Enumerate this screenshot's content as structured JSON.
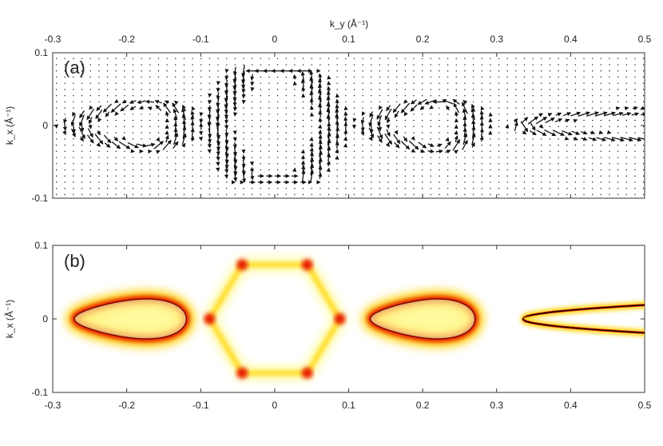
{
  "chart_data": [
    {
      "type": "quiver",
      "panel_label": "(a)",
      "xlabel": "k_y (Å⁻¹)",
      "ylabel": "k_x (Å⁻¹)",
      "xlim": [
        -0.3,
        0.5
      ],
      "ylim": [
        -0.1,
        0.1
      ],
      "x_ticks": [
        "-0.3",
        "-0.2",
        "-0.1",
        "0",
        "0.1",
        "0.2",
        "0.3",
        "0.4",
        "0.5"
      ],
      "y_ticks": [
        "0.1",
        "0",
        "-0.1"
      ],
      "x_tick_values": [
        -0.3,
        -0.2,
        -0.1,
        0,
        0.1,
        0.2,
        0.3,
        0.4,
        0.5
      ],
      "y_tick_values": [
        0.1,
        0,
        -0.1
      ],
      "x_axis_position": "top",
      "grid": false,
      "arrow_color": "#111111",
      "features": [
        {
          "shape": "lens",
          "center": [
            -0.195,
            0.0
          ],
          "half_width": 0.075,
          "half_height": 0.028
        },
        {
          "shape": "hexagon",
          "center": [
            0.0,
            0.0
          ],
          "radius_x": 0.085,
          "radius_y": 0.085
        },
        {
          "shape": "lens",
          "center": [
            0.2,
            0.0
          ],
          "half_width": 0.07,
          "half_height": 0.03
        },
        {
          "shape": "open-lens",
          "vertex": [
            0.335,
            0.0
          ],
          "opening": 0.02
        }
      ]
    },
    {
      "type": "heatmap",
      "panel_label": "(b)",
      "ylabel": "k_x (Å⁻¹)",
      "xlim": [
        -0.3,
        0.5
      ],
      "ylim": [
        -0.1,
        0.1
      ],
      "x_ticks": [
        "-0.3",
        "-0.2",
        "-0.1",
        "0",
        "0.1",
        "0.2",
        "0.3",
        "0.4",
        "0.5"
      ],
      "y_ticks": [
        "0.1",
        "0",
        "-0.1"
      ],
      "x_tick_values": [
        -0.3,
        -0.2,
        -0.1,
        0,
        0.1,
        0.2,
        0.3,
        0.4,
        0.5
      ],
      "y_tick_values": [
        0.1,
        0,
        -0.1
      ],
      "colormap": [
        "#ffffff",
        "#fffb9e",
        "#ffd200",
        "#e61e00",
        "#8a0000",
        "#000000"
      ],
      "features": [
        {
          "shape": "lens",
          "center": [
            -0.195,
            0.0
          ],
          "half_width": 0.075,
          "half_height": 0.025
        },
        {
          "shape": "hexagon",
          "center": [
            0.0,
            0.0
          ],
          "radius_x": 0.088,
          "radius_y": 0.085
        },
        {
          "shape": "lens",
          "center": [
            0.2,
            0.0
          ],
          "half_width": 0.07,
          "half_height": 0.025
        },
        {
          "shape": "open-lens",
          "vertex": [
            0.335,
            0.0
          ],
          "opening": 0.02
        }
      ]
    }
  ]
}
